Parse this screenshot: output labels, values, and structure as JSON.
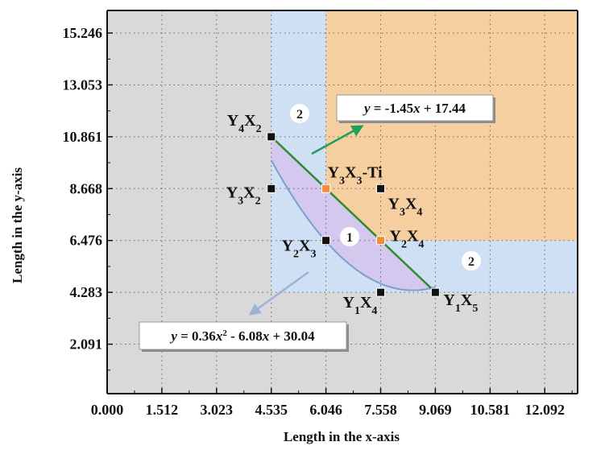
{
  "chart_data": {
    "type": "scatter",
    "title": "",
    "xlabel": "Length in the x-axis",
    "ylabel": "Length in the y-axis",
    "xlim": [
      0,
      13.0
    ],
    "ylim": [
      0,
      16.2
    ],
    "x_ticks": [
      "0.000",
      "1.512",
      "3.023",
      "4.535",
      "6.046",
      "7.558",
      "9.069",
      "10.581",
      "12.092"
    ],
    "x_tick_values": [
      0.0,
      1.512,
      3.023,
      4.535,
      6.046,
      7.558,
      9.069,
      10.581,
      12.092
    ],
    "y_ticks": [
      "2.091",
      "4.283",
      "6.476",
      "8.668",
      "10.861",
      "13.053",
      "15.246"
    ],
    "y_tick_values": [
      2.091,
      4.283,
      6.476,
      8.668,
      10.861,
      13.053,
      15.246
    ],
    "grid": true,
    "colors": {
      "background": "#d9d9d9",
      "region2": "#cfe0f4",
      "feasible": "#f6cfa0",
      "region1": "#d4c8ee",
      "line": "#2f8a2f",
      "curve": "#7d9fcf",
      "black_point": "#111111",
      "orange_point": "#f08c3c",
      "green_arrow": "#1da05a",
      "blue_arrow": "#9bb3d9"
    },
    "points": [
      {
        "label": "Y4X2",
        "x": 4.535,
        "y": 10.861,
        "color": "black"
      },
      {
        "label": "Y3X2",
        "x": 4.535,
        "y": 8.668,
        "color": "black"
      },
      {
        "label": "Y3X3-Ti",
        "x": 6.046,
        "y": 8.668,
        "color": "orange"
      },
      {
        "label": "Y3X4",
        "x": 7.558,
        "y": 8.668,
        "color": "black"
      },
      {
        "label": "Y2X3",
        "x": 6.046,
        "y": 6.476,
        "color": "black"
      },
      {
        "label": "Y2X4",
        "x": 7.558,
        "y": 6.476,
        "color": "orange"
      },
      {
        "label": "Y1X4",
        "x": 7.558,
        "y": 4.283,
        "color": "black"
      },
      {
        "label": "Y1X5",
        "x": 9.069,
        "y": 4.283,
        "color": "black"
      }
    ],
    "line": {
      "equation": "y = -1.45x + 17.44",
      "slope": -1.45,
      "intercept": 17.44,
      "x_range": [
        4.535,
        9.069
      ]
    },
    "curve": {
      "equation": "y = 0.36x² - 6.08x + 30.04",
      "a": 0.36,
      "b": -6.08,
      "c": 30.04,
      "x_range": [
        4.535,
        9.069
      ]
    },
    "region_labels": [
      "1",
      "2",
      "2"
    ]
  }
}
